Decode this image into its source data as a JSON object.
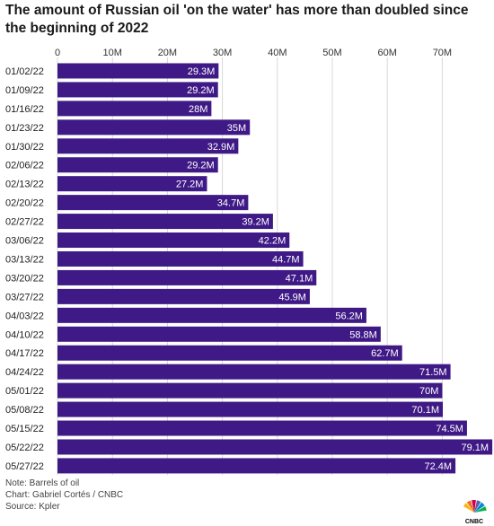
{
  "chart_data": {
    "type": "bar",
    "orientation": "horizontal",
    "title": "The amount of Russian oil 'on the water' has more than doubled since the beginning of 2022",
    "xlabel": "",
    "ylabel": "",
    "xlim": [
      0,
      79.1
    ],
    "x_ticks": [
      0,
      10,
      20,
      30,
      40,
      50,
      60,
      70
    ],
    "x_tick_labels": [
      "0",
      "10M",
      "20M",
      "30M",
      "40M",
      "50M",
      "60M",
      "70M"
    ],
    "grid": true,
    "bar_color": "#3f1a86",
    "categories": [
      "01/02/22",
      "01/09/22",
      "01/16/22",
      "01/23/22",
      "01/30/22",
      "02/06/22",
      "02/13/22",
      "02/20/22",
      "02/27/22",
      "03/06/22",
      "03/13/22",
      "03/20/22",
      "03/27/22",
      "04/03/22",
      "04/10/22",
      "04/17/22",
      "04/24/22",
      "05/01/22",
      "05/08/22",
      "05/15/22",
      "05/22/22",
      "05/27/22"
    ],
    "values": [
      29.3,
      29.2,
      28,
      35,
      32.9,
      29.2,
      27.2,
      34.7,
      39.2,
      42.2,
      44.7,
      47.1,
      45.9,
      56.2,
      58.8,
      62.7,
      71.5,
      70,
      70.1,
      74.5,
      79.1,
      72.4
    ],
    "value_labels": [
      "29.3M",
      "29.2M",
      "28M",
      "35M",
      "32.9M",
      "29.2M",
      "27.2M",
      "34.7M",
      "39.2M",
      "42.2M",
      "44.7M",
      "47.1M",
      "45.9M",
      "56.2M",
      "58.8M",
      "62.7M",
      "71.5M",
      "70M",
      "70.1M",
      "74.5M",
      "79.1M",
      "72.4M"
    ]
  },
  "footer": {
    "note": "Note: Barrels of oil",
    "credit": "Chart: Gabriel Cortés / CNBC",
    "source": "Source: Kpler"
  },
  "logo": {
    "text": "CNBC",
    "icon": "cnbc-peacock-icon",
    "colors": [
      "#fcb711",
      "#f37021",
      "#cc004c",
      "#6460aa",
      "#0089d0",
      "#0db14b"
    ]
  }
}
